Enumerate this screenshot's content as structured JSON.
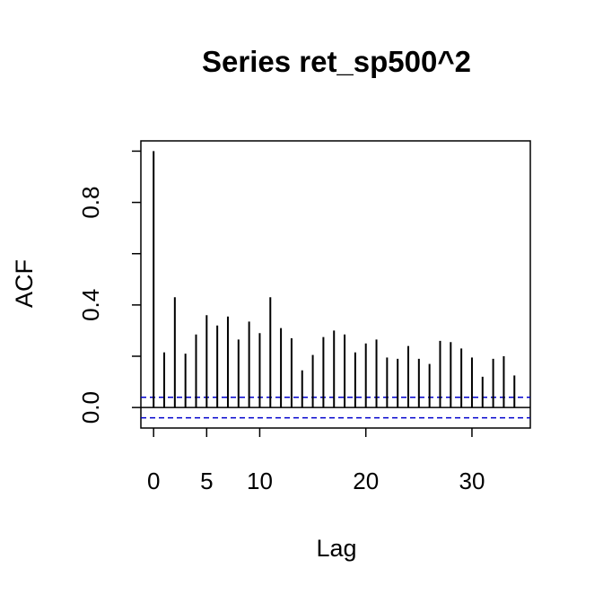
{
  "chart_data": {
    "type": "bar",
    "title": "Series  ret_sp500^2",
    "xlabel": "Lag",
    "ylabel": "ACF",
    "x": [
      0,
      1,
      2,
      3,
      4,
      5,
      6,
      7,
      8,
      9,
      10,
      11,
      12,
      13,
      14,
      15,
      16,
      17,
      18,
      19,
      20,
      21,
      22,
      23,
      24,
      25,
      26,
      27,
      28,
      29,
      30,
      31,
      32,
      33,
      34
    ],
    "values": [
      1.0,
      0.215,
      0.43,
      0.21,
      0.285,
      0.36,
      0.32,
      0.355,
      0.265,
      0.335,
      0.29,
      0.43,
      0.31,
      0.27,
      0.145,
      0.205,
      0.275,
      0.3,
      0.285,
      0.215,
      0.25,
      0.265,
      0.195,
      0.19,
      0.24,
      0.19,
      0.17,
      0.26,
      0.255,
      0.23,
      0.195,
      0.12,
      0.19,
      0.2,
      0.125
    ],
    "ci_upper": 0.04,
    "ci_lower": -0.04,
    "xlim": [
      -1.2,
      35.5
    ],
    "ylim": [
      -0.08,
      1.04
    ],
    "x_ticks": [
      0,
      5,
      10,
      20,
      30
    ],
    "x_tick_labels": [
      "0",
      "5",
      "10",
      "20",
      "30"
    ],
    "y_ticks": [
      0.0,
      0.2,
      0.4,
      0.6,
      0.8,
      1.0
    ],
    "y_tick_labels": [
      "0.0",
      "",
      "0.4",
      "",
      "0.8",
      ""
    ],
    "colors": {
      "bars": "#000000",
      "ci_lines": "#0000cc",
      "frame": "#000000"
    },
    "grid": false,
    "legend": "none"
  }
}
